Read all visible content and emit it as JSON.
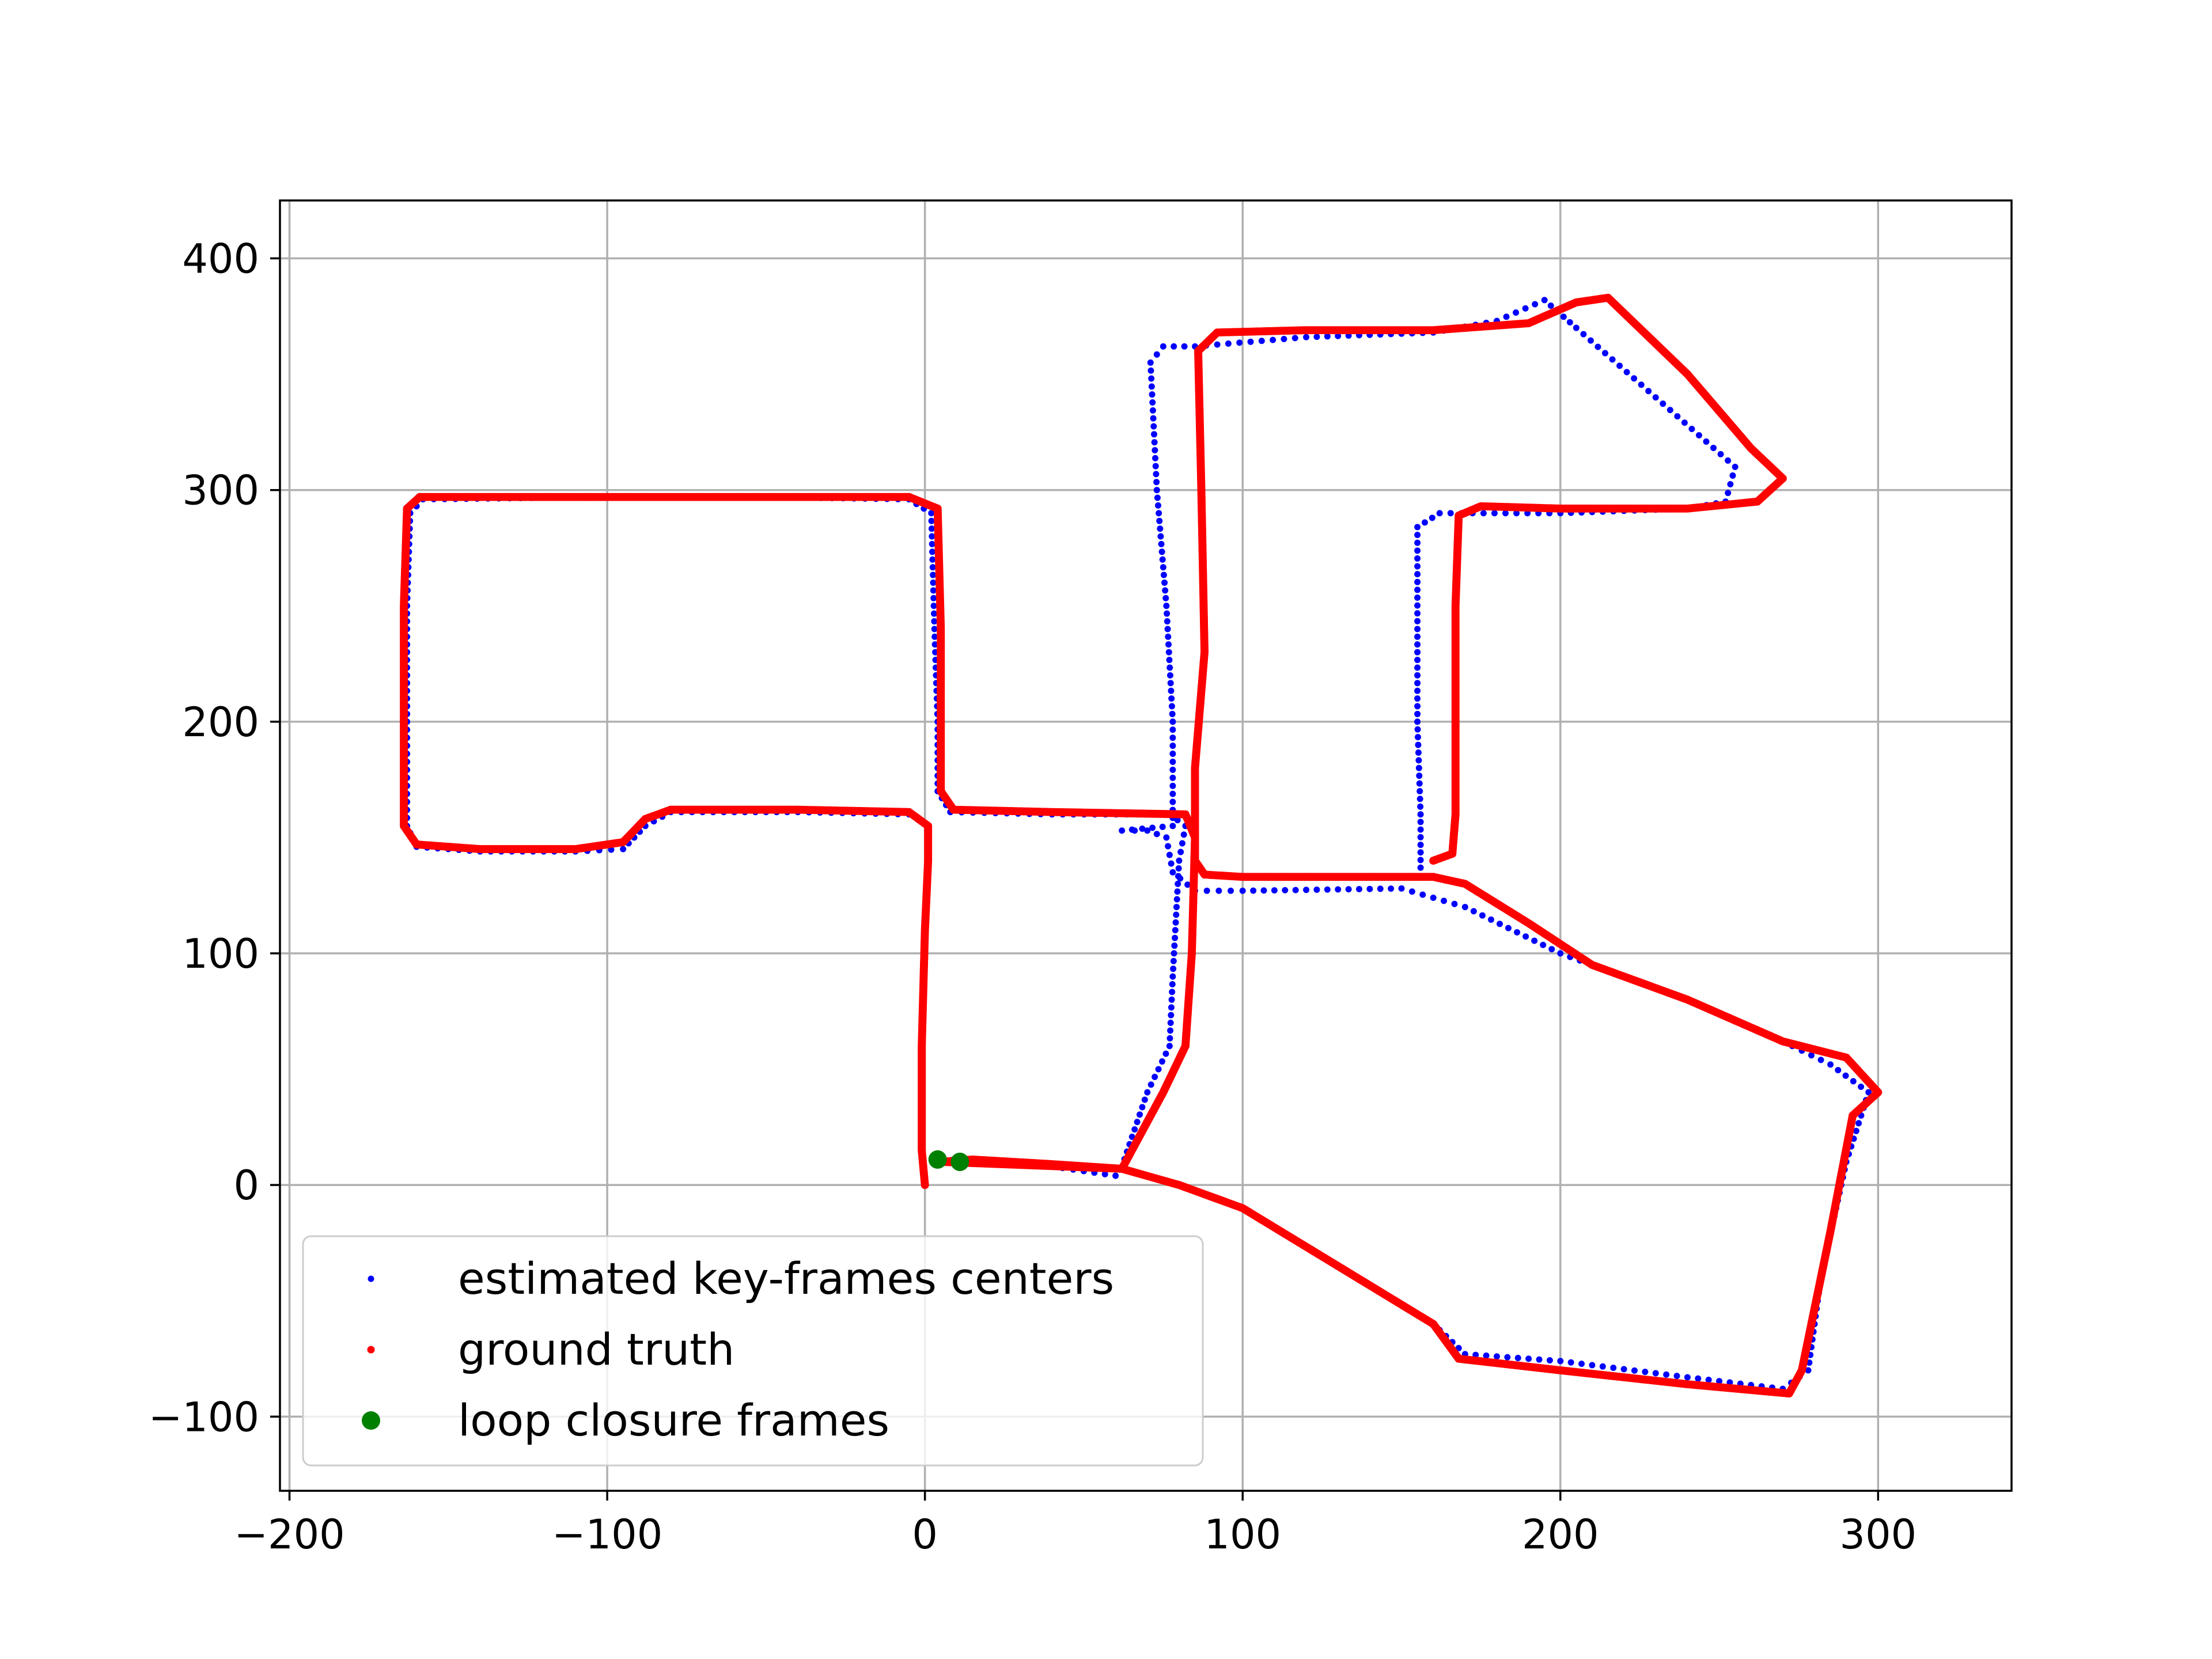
{
  "chart_data": {
    "type": "scatter",
    "title": "",
    "xlabel": "",
    "ylabel": "",
    "xlim": [
      -203,
      342
    ],
    "ylim": [
      -132,
      425
    ],
    "x_ticks": [
      -200,
      -100,
      0,
      100,
      200,
      300
    ],
    "y_ticks": [
      -100,
      0,
      100,
      200,
      300,
      400
    ],
    "x_tick_labels": [
      "−200",
      "−100",
      "0",
      "100",
      "200",
      "300"
    ],
    "y_tick_labels": [
      "−100",
      "0",
      "100",
      "200",
      "300",
      "400"
    ],
    "grid": true,
    "legend_position": "lower-left",
    "series": [
      {
        "name": "estimated key-frames centers",
        "color": "#0000ff",
        "marker": "small-dot",
        "path": [
          [
            0,
            0
          ],
          [
            -1,
            15
          ],
          [
            -1,
            60
          ],
          [
            0,
            110
          ],
          [
            1,
            140
          ],
          [
            1,
            155
          ],
          [
            -5,
            160
          ],
          [
            -40,
            161
          ],
          [
            -80,
            161
          ],
          [
            -88,
            155
          ],
          [
            -95,
            145
          ],
          [
            -110,
            144
          ],
          [
            -140,
            144
          ],
          [
            -160,
            146
          ],
          [
            -163,
            155
          ],
          [
            -163,
            200
          ],
          [
            -163,
            250
          ],
          [
            -162,
            290
          ],
          [
            -158,
            296
          ],
          [
            -100,
            297
          ],
          [
            -50,
            297
          ],
          [
            -5,
            296
          ],
          [
            2,
            290
          ],
          [
            3,
            240
          ],
          [
            4,
            200
          ],
          [
            4,
            170
          ],
          [
            8,
            161
          ],
          [
            40,
            160
          ],
          [
            77,
            160
          ],
          [
            82,
            155
          ],
          [
            80,
            140
          ],
          [
            78,
            90
          ],
          [
            77,
            60
          ],
          [
            70,
            40
          ],
          [
            62,
            8
          ],
          [
            60,
            4
          ],
          [
            40,
            8
          ],
          [
            15,
            10
          ],
          [
            5,
            11
          ],
          [
            62,
            7
          ],
          [
            80,
            0
          ],
          [
            100,
            -10
          ],
          [
            130,
            -35
          ],
          [
            160,
            -60
          ],
          [
            170,
            -73
          ],
          [
            200,
            -76
          ],
          [
            240,
            -83
          ],
          [
            270,
            -88
          ],
          [
            278,
            -80
          ],
          [
            282,
            -40
          ],
          [
            290,
            10
          ],
          [
            297,
            40
          ],
          [
            285,
            52
          ],
          [
            270,
            62
          ],
          [
            240,
            80
          ],
          [
            200,
            100
          ],
          [
            170,
            120
          ],
          [
            150,
            128
          ],
          [
            100,
            127
          ],
          [
            85,
            127
          ],
          [
            78,
            135
          ],
          [
            76,
            150
          ],
          [
            70,
            153
          ],
          [
            62,
            153
          ],
          [
            78,
            155
          ],
          [
            78,
            200
          ],
          [
            76,
            250
          ],
          [
            73,
            300
          ],
          [
            71,
            355
          ],
          [
            75,
            362
          ],
          [
            85,
            362
          ],
          [
            120,
            366
          ],
          [
            160,
            368
          ],
          [
            180,
            373
          ],
          [
            195,
            382
          ],
          [
            205,
            370
          ],
          [
            230,
            340
          ],
          [
            255,
            310
          ],
          [
            252,
            295
          ],
          [
            240,
            292
          ],
          [
            200,
            290
          ],
          [
            162,
            290
          ],
          [
            155,
            284
          ],
          [
            155,
            240
          ],
          [
            155,
            200
          ],
          [
            156,
            160
          ],
          [
            156,
            137
          ]
        ]
      },
      {
        "name": "ground truth",
        "color": "#ff0000",
        "marker": "thick-dot",
        "path": [
          [
            0,
            0
          ],
          [
            -1,
            15
          ],
          [
            -1,
            60
          ],
          [
            0,
            110
          ],
          [
            1,
            140
          ],
          [
            1,
            155
          ],
          [
            -5,
            161
          ],
          [
            -40,
            162
          ],
          [
            -80,
            162
          ],
          [
            -88,
            158
          ],
          [
            -95,
            148
          ],
          [
            -110,
            145
          ],
          [
            -140,
            145
          ],
          [
            -160,
            147
          ],
          [
            -164,
            155
          ],
          [
            -164,
            200
          ],
          [
            -164,
            250
          ],
          [
            -163,
            292
          ],
          [
            -159,
            297
          ],
          [
            -100,
            297
          ],
          [
            -50,
            297
          ],
          [
            -5,
            297
          ],
          [
            4,
            292
          ],
          [
            5,
            240
          ],
          [
            5,
            200
          ],
          [
            5,
            170
          ],
          [
            9,
            162
          ],
          [
            40,
            161
          ],
          [
            82,
            160
          ],
          [
            85,
            150
          ],
          [
            84,
            100
          ],
          [
            82,
            60
          ],
          [
            75,
            40
          ],
          [
            62,
            7
          ],
          [
            40,
            9
          ],
          [
            15,
            11
          ],
          [
            5,
            10
          ],
          [
            62,
            7
          ],
          [
            80,
            0
          ],
          [
            100,
            -10
          ],
          [
            130,
            -35
          ],
          [
            160,
            -60
          ],
          [
            168,
            -75
          ],
          [
            200,
            -80
          ],
          [
            240,
            -86
          ],
          [
            272,
            -90
          ],
          [
            276,
            -80
          ],
          [
            285,
            -20
          ],
          [
            292,
            30
          ],
          [
            300,
            40
          ],
          [
            290,
            55
          ],
          [
            270,
            62
          ],
          [
            240,
            80
          ],
          [
            210,
            95
          ],
          [
            190,
            113
          ],
          [
            170,
            130
          ],
          [
            160,
            133
          ],
          [
            100,
            133
          ],
          [
            88,
            134
          ],
          [
            85,
            140
          ],
          [
            85,
            180
          ],
          [
            88,
            230
          ],
          [
            87,
            300
          ],
          [
            86,
            360
          ],
          [
            92,
            368
          ],
          [
            120,
            369
          ],
          [
            160,
            369
          ],
          [
            190,
            372
          ],
          [
            205,
            381
          ],
          [
            215,
            383
          ],
          [
            240,
            350
          ],
          [
            260,
            318
          ],
          [
            270,
            305
          ],
          [
            262,
            295
          ],
          [
            240,
            292
          ],
          [
            200,
            292
          ],
          [
            175,
            293
          ],
          [
            168,
            289
          ],
          [
            167,
            250
          ],
          [
            167,
            200
          ],
          [
            167,
            160
          ],
          [
            166,
            143
          ],
          [
            160,
            140
          ]
        ]
      },
      {
        "name": "loop closure frames",
        "color": "#008000",
        "marker": "large-dot",
        "points": [
          [
            4,
            11
          ],
          [
            11,
            10
          ]
        ]
      }
    ]
  }
}
